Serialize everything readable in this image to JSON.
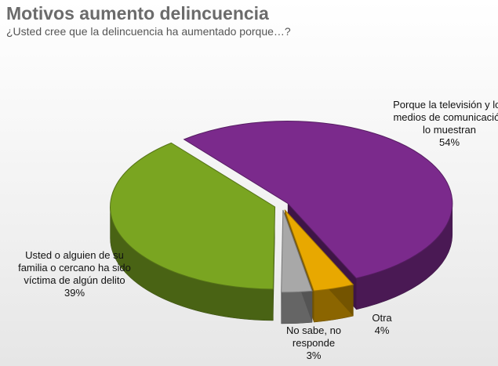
{
  "chart_data": {
    "type": "pie3d",
    "title": "Motivos aumento delincuencia",
    "subtitle": "¿Usted cree que la delincuencia ha aumentado porque…?",
    "categories": [
      "Porque la televisión y los medios de comunicación lo muestran",
      "Otra",
      "No sabe, no responde",
      "Usted o alguien de su familia o cercano ha sido víctima de algún delito"
    ],
    "values": [
      54,
      4,
      3,
      39
    ],
    "value_labels": [
      "54%",
      "4%",
      "3%",
      "39%"
    ],
    "colors": [
      "#7b2a8c",
      "#e8a800",
      "#a8a8a8",
      "#7aa521"
    ]
  }
}
